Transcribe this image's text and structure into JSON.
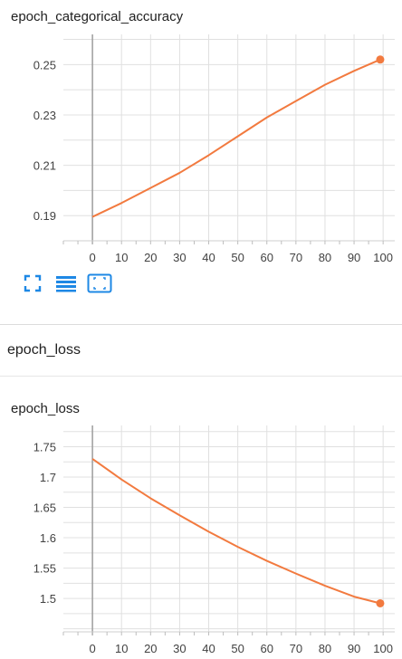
{
  "section": {
    "title": "epoch_loss"
  },
  "colors": {
    "line": "#f27a3f",
    "grid": "#e0e0e0",
    "axis": "#9e9e9e",
    "icon": "#1e88e5"
  },
  "toolbar": {
    "icons": [
      "fit-to-screen-icon",
      "data-table-icon",
      "fit-domain-icon"
    ]
  },
  "chart_data": [
    {
      "type": "line",
      "title": "epoch_categorical_accuracy",
      "xlabel": "",
      "ylabel": "",
      "xlim": [
        -10,
        104
      ],
      "ylim": [
        0.18,
        0.262
      ],
      "xticks": [
        0,
        10,
        20,
        30,
        40,
        50,
        60,
        70,
        80,
        90,
        100
      ],
      "yticks": [
        0.19,
        0.21,
        0.23,
        0.25
      ],
      "ytick_labels": [
        "0.19",
        "0.21",
        "0.23",
        "0.25"
      ],
      "grid": true,
      "series": [
        {
          "x": [
            0,
            10,
            20,
            30,
            40,
            50,
            60,
            70,
            80,
            90,
            99
          ],
          "values": [
            0.1895,
            0.195,
            0.201,
            0.207,
            0.214,
            0.2215,
            0.229,
            0.2355,
            0.242,
            0.2475,
            0.252
          ]
        }
      ]
    },
    {
      "type": "line",
      "title": "epoch_loss",
      "xlabel": "",
      "ylabel": "",
      "xlim": [
        -10,
        104
      ],
      "ylim": [
        1.445,
        1.785
      ],
      "xticks": [
        0,
        10,
        20,
        30,
        40,
        50,
        60,
        70,
        80,
        90,
        100
      ],
      "yticks": [
        1.5,
        1.55,
        1.6,
        1.65,
        1.7,
        1.75
      ],
      "ytick_labels": [
        "1.5",
        "1.55",
        "1.6",
        "1.65",
        "1.7",
        "1.75"
      ],
      "grid": true,
      "series": [
        {
          "x": [
            0,
            10,
            20,
            30,
            40,
            50,
            60,
            70,
            80,
            90,
            99
          ],
          "values": [
            1.73,
            1.696,
            1.665,
            1.637,
            1.61,
            1.585,
            1.562,
            1.541,
            1.521,
            1.503,
            1.492
          ]
        }
      ]
    }
  ]
}
